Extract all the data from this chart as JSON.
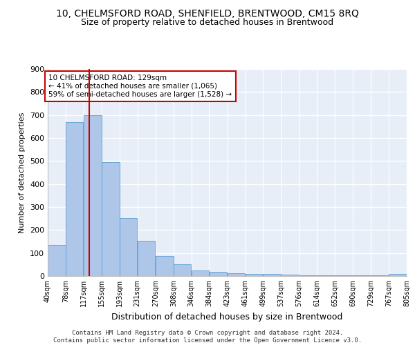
{
  "title": "10, CHELMSFORD ROAD, SHENFIELD, BRENTWOOD, CM15 8RQ",
  "subtitle": "Size of property relative to detached houses in Brentwood",
  "xlabel": "Distribution of detached houses by size in Brentwood",
  "ylabel": "Number of detached properties",
  "bar_color": "#aec6e8",
  "bar_edge_color": "#5a9fd4",
  "property_line_color": "#cc0000",
  "property_size": 129,
  "annotation_text": "10 CHELMSFORD ROAD: 129sqm\n← 41% of detached houses are smaller (1,065)\n59% of semi-detached houses are larger (1,528) →",
  "annotation_box_color": "#ffffff",
  "annotation_box_edge": "#cc0000",
  "bin_edges": [
    40,
    78,
    117,
    155,
    193,
    231,
    270,
    308,
    346,
    384,
    423,
    461,
    499,
    537,
    576,
    614,
    652,
    690,
    729,
    767,
    805
  ],
  "bin_labels": [
    "40sqm",
    "78sqm",
    "117sqm",
    "155sqm",
    "193sqm",
    "231sqm",
    "270sqm",
    "308sqm",
    "346sqm",
    "384sqm",
    "423sqm",
    "461sqm",
    "499sqm",
    "537sqm",
    "576sqm",
    "614sqm",
    "652sqm",
    "690sqm",
    "729sqm",
    "767sqm",
    "805sqm"
  ],
  "bar_heights": [
    135,
    670,
    700,
    495,
    252,
    152,
    87,
    52,
    23,
    19,
    12,
    10,
    9,
    5,
    4,
    4,
    4,
    4,
    3,
    10
  ],
  "ylim": [
    0,
    900
  ],
  "yticks": [
    0,
    100,
    200,
    300,
    400,
    500,
    600,
    700,
    800,
    900
  ],
  "footer": "Contains HM Land Registry data © Crown copyright and database right 2024.\nContains public sector information licensed under the Open Government Licence v3.0.",
  "bg_color": "#e8eef7",
  "grid_color": "#ffffff",
  "title_fontsize": 10,
  "subtitle_fontsize": 9,
  "ylabel_fontsize": 8,
  "xlabel_fontsize": 9
}
